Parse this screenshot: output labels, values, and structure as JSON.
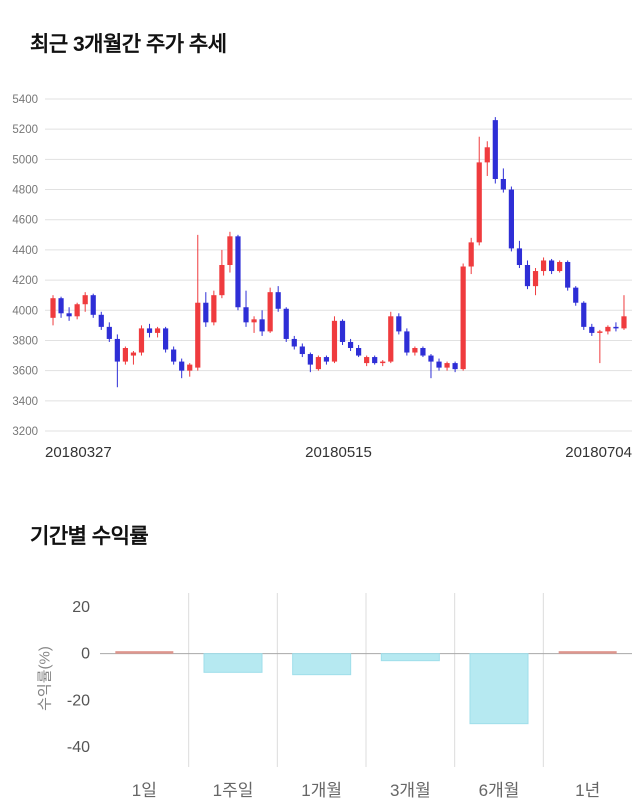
{
  "chart_data": [
    {
      "type": "candlestick",
      "title": "최근 3개월간 주가 추세",
      "x_tick_labels": [
        "20180327",
        "20180515",
        "20180704"
      ],
      "ylim": [
        3200,
        5400
      ],
      "y_ticks": [
        5400,
        5200,
        5000,
        4800,
        4600,
        4400,
        4200,
        4000,
        3800,
        3600,
        3400,
        3200
      ],
      "up_color": "#ef3b3e",
      "down_color": "#2e2ed6",
      "grid_color": "#e1e1e1",
      "tick_label_color": "#777777",
      "candles_ohlc": [
        [
          3950,
          4100,
          3900,
          4080
        ],
        [
          4080,
          4090,
          3950,
          3980
        ],
        [
          3980,
          4020,
          3930,
          3960
        ],
        [
          3960,
          4050,
          3940,
          4040
        ],
        [
          4040,
          4120,
          3990,
          4100
        ],
        [
          4100,
          4110,
          3950,
          3970
        ],
        [
          3970,
          3990,
          3870,
          3890
        ],
        [
          3890,
          3920,
          3790,
          3810
        ],
        [
          3810,
          3840,
          3490,
          3660
        ],
        [
          3660,
          3760,
          3640,
          3750
        ],
        [
          3700,
          3730,
          3640,
          3720
        ],
        [
          3720,
          3900,
          3700,
          3880
        ],
        [
          3880,
          3910,
          3820,
          3850
        ],
        [
          3850,
          3890,
          3820,
          3880
        ],
        [
          3880,
          3890,
          3720,
          3740
        ],
        [
          3740,
          3760,
          3640,
          3660
        ],
        [
          3660,
          3680,
          3550,
          3600
        ],
        [
          3600,
          3650,
          3560,
          3640
        ],
        [
          3620,
          4500,
          3600,
          4050
        ],
        [
          4050,
          4120,
          3890,
          3920
        ],
        [
          3920,
          4130,
          3900,
          4100
        ],
        [
          4100,
          4400,
          4080,
          4300
        ],
        [
          4300,
          4520,
          4250,
          4490
        ],
        [
          4490,
          4500,
          4000,
          4020
        ],
        [
          4020,
          4130,
          3890,
          3920
        ],
        [
          3920,
          3960,
          3850,
          3940
        ],
        [
          3940,
          4000,
          3830,
          3860
        ],
        [
          3860,
          4150,
          3850,
          4120
        ],
        [
          4120,
          4160,
          3990,
          4010
        ],
        [
          4010,
          4020,
          3790,
          3810
        ],
        [
          3810,
          3830,
          3740,
          3760
        ],
        [
          3760,
          3780,
          3690,
          3710
        ],
        [
          3710,
          3720,
          3590,
          3640
        ],
        [
          3610,
          3700,
          3600,
          3690
        ],
        [
          3690,
          3700,
          3640,
          3660
        ],
        [
          3660,
          3960,
          3650,
          3930
        ],
        [
          3930,
          3940,
          3770,
          3790
        ],
        [
          3790,
          3810,
          3730,
          3750
        ],
        [
          3750,
          3770,
          3690,
          3700
        ],
        [
          3650,
          3700,
          3630,
          3690
        ],
        [
          3690,
          3700,
          3640,
          3650
        ],
        [
          3650,
          3670,
          3630,
          3660
        ],
        [
          3660,
          3990,
          3650,
          3960
        ],
        [
          3960,
          3980,
          3840,
          3860
        ],
        [
          3860,
          3880,
          3700,
          3720
        ],
        [
          3720,
          3760,
          3700,
          3750
        ],
        [
          3750,
          3760,
          3690,
          3700
        ],
        [
          3700,
          3710,
          3550,
          3660
        ],
        [
          3660,
          3680,
          3600,
          3620
        ],
        [
          3620,
          3660,
          3600,
          3650
        ],
        [
          3650,
          3660,
          3590,
          3610
        ],
        [
          3610,
          4310,
          3600,
          4290
        ],
        [
          4290,
          4480,
          4240,
          4450
        ],
        [
          4450,
          5150,
          4430,
          4980
        ],
        [
          4980,
          5120,
          4890,
          5080
        ],
        [
          5260,
          5280,
          4840,
          4870
        ],
        [
          4870,
          4940,
          4780,
          4800
        ],
        [
          4800,
          4820,
          4390,
          4410
        ],
        [
          4410,
          4460,
          4280,
          4300
        ],
        [
          4300,
          4330,
          4140,
          4160
        ],
        [
          4160,
          4280,
          4100,
          4260
        ],
        [
          4260,
          4350,
          4230,
          4330
        ],
        [
          4330,
          4340,
          4240,
          4260
        ],
        [
          4260,
          4330,
          4250,
          4320
        ],
        [
          4320,
          4330,
          4130,
          4150
        ],
        [
          4150,
          4160,
          4030,
          4050
        ],
        [
          4050,
          4060,
          3870,
          3890
        ],
        [
          3890,
          3910,
          3830,
          3850
        ],
        [
          3850,
          3870,
          3650,
          3860
        ],
        [
          3860,
          3900,
          3840,
          3890
        ],
        [
          3890,
          3920,
          3860,
          3880
        ],
        [
          3880,
          4100,
          3870,
          3960
        ]
      ]
    },
    {
      "type": "bar",
      "title": "기간별 수익률",
      "ylabel": "수익률(%)",
      "categories": [
        "1일",
        "1주일",
        "1개월",
        "3개월",
        "6개월",
        "1년"
      ],
      "values": [
        0.4,
        -8,
        -9,
        -3,
        -30,
        0.4
      ],
      "ylim": [
        -40,
        20
      ],
      "y_ticks": [
        20,
        0,
        -20,
        -40
      ],
      "positive_color": "#de968e",
      "negative_color": "#b6e9f1",
      "negative_stroke": "#9fdeea",
      "grid_color": "#dcdcdc",
      "zero_line_color": "#a8a8a8",
      "tick_label_color": "#555555"
    }
  ]
}
